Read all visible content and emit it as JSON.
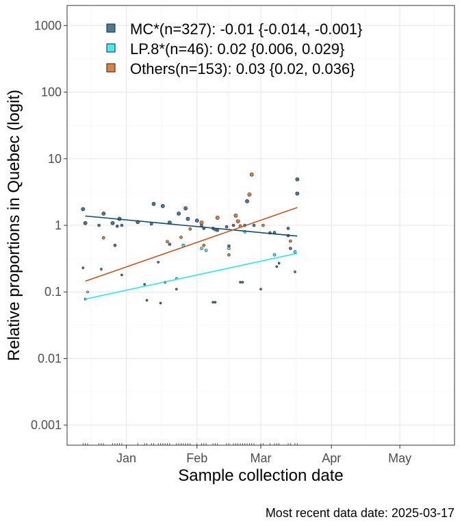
{
  "chart_data": {
    "type": "scatter",
    "ylabel": "Relative proportions in Quebec (logit)",
    "xlabel": "Sample collection date",
    "caption": "Most recent data date: 2025-03-17",
    "y_scale": "log10",
    "ylim": [
      0.0005,
      2000
    ],
    "y_ticks": [
      0.001,
      0.01,
      0.1,
      1,
      10,
      100,
      1000
    ],
    "y_tick_labels": [
      "0.001",
      "0.01",
      "0.1",
      "1",
      "10",
      "100",
      "1000"
    ],
    "xlim": [
      "2024-12-06",
      "2025-05-25"
    ],
    "x_ticks": [
      "2025-01-01",
      "2025-02-01",
      "2025-03-01",
      "2025-04-01",
      "2025-05-01"
    ],
    "x_tick_labels": [
      "Jan",
      "Feb",
      "Mar",
      "Apr",
      "May"
    ],
    "grid": true,
    "legend_position": "top-left",
    "series": [
      {
        "name": "MC*(n=327): -0.01 {-0.014, -0.001}",
        "color": "#4a7a96",
        "line_color": "#0b4a6e",
        "fit": [
          [
            "2024-12-14",
            1.38
          ],
          [
            "2025-03-17",
            0.69
          ]
        ],
        "points": [
          [
            "2024-12-13",
            1.75
          ],
          [
            "2024-12-14",
            1.08
          ],
          [
            "2024-12-20",
            1.0
          ],
          [
            "2024-12-22",
            1.5
          ],
          [
            "2024-12-26",
            1.08
          ],
          [
            "2024-12-28",
            0.97
          ],
          [
            "2024-12-29",
            1.25
          ],
          [
            "2024-12-30",
            1.0
          ],
          [
            "2025-01-06",
            1.12
          ],
          [
            "2025-01-12",
            1.05
          ],
          [
            "2025-01-13",
            2.1
          ],
          [
            "2025-01-17",
            1.95
          ],
          [
            "2025-01-20",
            1.1
          ],
          [
            "2025-01-24",
            1.5
          ],
          [
            "2025-01-27",
            1.8
          ],
          [
            "2025-01-28",
            1.25
          ],
          [
            "2025-02-01",
            1.18
          ],
          [
            "2025-02-03",
            1.0
          ],
          [
            "2025-02-04",
            0.9
          ],
          [
            "2025-02-08",
            0.9
          ],
          [
            "2025-02-09",
            0.86
          ],
          [
            "2025-02-10",
            0.84
          ],
          [
            "2025-02-14",
            0.95
          ],
          [
            "2025-02-17",
            1.0
          ],
          [
            "2025-02-22",
            1.0
          ],
          [
            "2025-02-23",
            2.3
          ],
          [
            "2025-02-26",
            1.0
          ],
          [
            "2025-03-05",
            0.77
          ],
          [
            "2025-03-07",
            0.78
          ],
          [
            "2025-03-13",
            0.9
          ],
          [
            "2025-03-14",
            0.45
          ],
          [
            "2025-03-17",
            4.9
          ],
          [
            "2024-12-13",
            0.23
          ],
          [
            "2024-12-21",
            0.22
          ],
          [
            "2024-12-27",
            0.5
          ],
          [
            "2024-12-30",
            0.18
          ],
          [
            "2025-01-09",
            0.13
          ],
          [
            "2025-01-10",
            0.075
          ],
          [
            "2025-01-15",
            0.28
          ],
          [
            "2025-01-16",
            0.068
          ],
          [
            "2025-01-18",
            0.14
          ],
          [
            "2025-01-20",
            0.52
          ],
          [
            "2025-01-23",
            0.11
          ],
          [
            "2025-02-08",
            0.07
          ],
          [
            "2025-02-09",
            0.07
          ],
          [
            "2025-02-15",
            0.49
          ],
          [
            "2025-02-20",
            0.14
          ],
          [
            "2025-02-21",
            0.14
          ],
          [
            "2025-03-01",
            0.11
          ],
          [
            "2025-03-08",
            0.24
          ],
          [
            "2025-03-09",
            0.27
          ],
          [
            "2025-03-13",
            0.7
          ],
          [
            "2025-03-16",
            0.2
          ],
          [
            "2025-03-17",
            3.0
          ]
        ]
      },
      {
        "name": "LP.8*(n=46): 0.02 {0.006, 0.029}",
        "color": "#3ceefa",
        "line_color": "#22e6f4",
        "fit": [
          [
            "2024-12-14",
            0.078
          ],
          [
            "2025-03-17",
            0.38
          ]
        ],
        "points": [
          [
            "2024-12-14",
            0.078
          ],
          [
            "2024-12-15",
            0.1
          ],
          [
            "2025-01-23",
            0.16
          ],
          [
            "2025-01-26",
            0.5
          ],
          [
            "2025-02-03",
            0.45
          ],
          [
            "2025-02-05",
            0.42
          ],
          [
            "2025-02-15",
            0.45
          ],
          [
            "2025-02-22",
            0.8
          ],
          [
            "2025-03-07",
            0.36
          ],
          [
            "2025-03-16",
            0.4
          ]
        ]
      },
      {
        "name": "Others(n=153): 0.03 {0.02, 0.036}",
        "color": "#e0823e",
        "line_color": "#c4561a",
        "fit": [
          [
            "2024-12-14",
            0.145
          ],
          [
            "2025-03-17",
            1.85
          ]
        ],
        "points": [
          [
            "2024-12-22",
            0.65
          ],
          [
            "2025-01-19",
            0.57
          ],
          [
            "2025-01-25",
            0.66
          ],
          [
            "2025-01-29",
            0.88
          ],
          [
            "2025-02-03",
            1.1
          ],
          [
            "2025-02-04",
            0.5
          ],
          [
            "2025-02-10",
            1.3
          ],
          [
            "2025-02-15",
            0.36
          ],
          [
            "2025-02-18",
            1.4
          ],
          [
            "2025-02-19",
            1.15
          ],
          [
            "2025-02-20",
            0.98
          ],
          [
            "2025-02-24",
            2.9
          ],
          [
            "2025-02-25",
            5.8
          ],
          [
            "2025-03-02",
            1.0
          ],
          [
            "2025-03-14",
            0.58
          ]
        ]
      }
    ]
  }
}
